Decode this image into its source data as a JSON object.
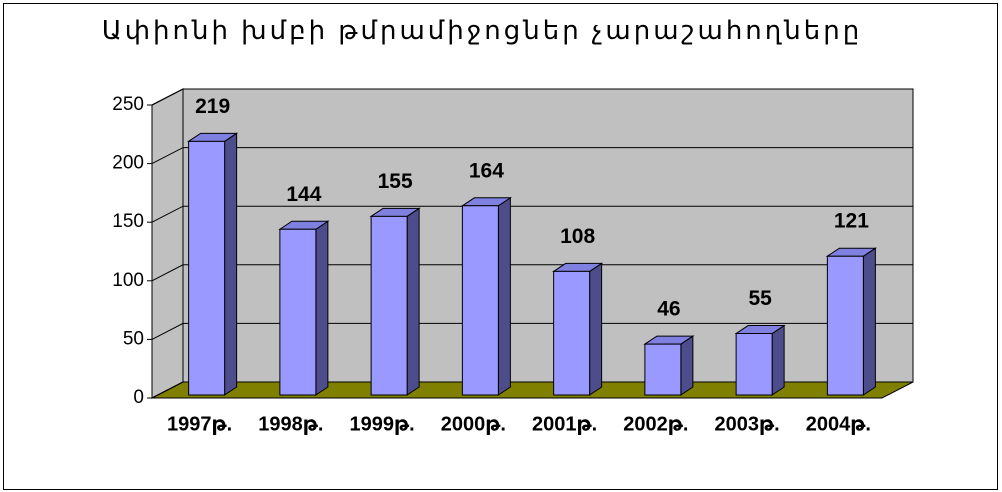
{
  "chart_data": {
    "type": "bar3d",
    "title": "Ափիոնի խմբի թմրամիջոցներ չարաշահողները",
    "categories": [
      "1997թ.",
      "1998թ.",
      "1999թ.",
      "2000թ.",
      "2001թ.",
      "2002թ.",
      "2003թ.",
      "2004թ."
    ],
    "values": [
      219,
      144,
      155,
      164,
      108,
      46,
      55,
      121
    ],
    "color": "#9999ff",
    "ylim": [
      0,
      250
    ],
    "yticks": [
      0,
      50,
      100,
      150,
      200,
      250
    ],
    "grid": true
  }
}
